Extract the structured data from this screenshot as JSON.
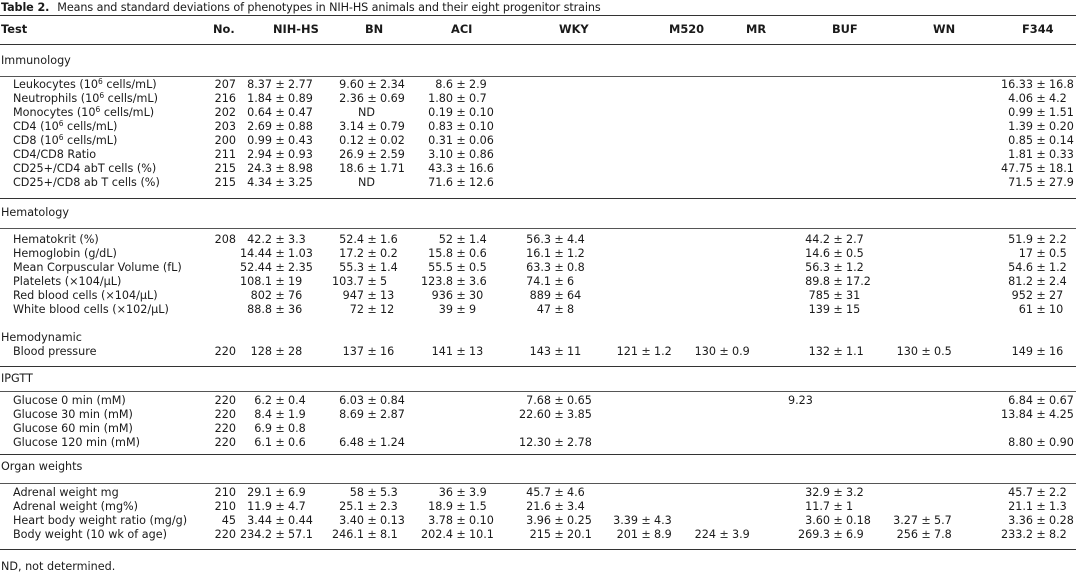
{
  "table": {
    "label": "Table 2.",
    "caption": "Means and standard deviations of phenotypes in NIH-HS animals and their eight progenitor strains",
    "columns": [
      "Test",
      "No.",
      "NIH-HS",
      "BN",
      "ACI",
      "WKY",
      "M520",
      "MR",
      "BUF",
      "WN",
      "F344"
    ],
    "sections": [
      {
        "name": "Immunology",
        "rows": [
          {
            "test": "Leukocytes (10^6 cells/mL)",
            "no": "207",
            "values": {
              "NIH-HS": "8.37 ± 2.77",
              "BN": "9.60 ± 2.34",
              "ACI": "8.6 ± 2.9",
              "WKY": "",
              "M520": "",
              "MR": "",
              "BUF": "",
              "WN": "",
              "F344": "16.33 ± 16.8"
            }
          },
          {
            "test": "Neutrophils (10^6 cells/mL)",
            "no": "216",
            "values": {
              "NIH-HS": "1.84 ± 0.89",
              "BN": "2.36 ± 0.69",
              "ACI": "1.80 ± 0.7",
              "WKY": "",
              "M520": "",
              "MR": "",
              "BUF": "",
              "WN": "",
              "F344": "4.06 ± 4.2"
            }
          },
          {
            "test": "Monocytes (10^6 cells/mL)",
            "no": "202",
            "values": {
              "NIH-HS": "0.64 ± 0.47",
              "BN": "ND",
              "ACI": "0.19 ± 0.10",
              "WKY": "",
              "M520": "",
              "MR": "",
              "BUF": "",
              "WN": "",
              "F344": "0.99 ± 1.51"
            }
          },
          {
            "test": "CD4 (10^6 cells/mL)",
            "no": "203",
            "values": {
              "NIH-HS": "2.69 ± 0.88",
              "BN": "3.14 ± 0.79",
              "ACI": "0.83 ± 0.10",
              "WKY": "",
              "M520": "",
              "MR": "",
              "BUF": "",
              "WN": "",
              "F344": "1.39 ± 0.20"
            }
          },
          {
            "test": "CD8 (10^6 cells/mL)",
            "no": "200",
            "values": {
              "NIH-HS": "0.99 ± 0.43",
              "BN": "0.12 ± 0.02",
              "ACI": "0.31 ± 0.06",
              "WKY": "",
              "M520": "",
              "MR": "",
              "BUF": "",
              "WN": "",
              "F344": "0.85 ± 0.14"
            }
          },
          {
            "test": "CD4/CD8 Ratio",
            "no": "211",
            "values": {
              "NIH-HS": "2.94 ± 0.93",
              "BN": "26.9 ± 2.59",
              "ACI": "3.10 ± 0.86",
              "WKY": "",
              "M520": "",
              "MR": "",
              "BUF": "",
              "WN": "",
              "F344": "1.81 ± 0.33"
            }
          },
          {
            "test": "CD25+/CD4 abT cells (%)",
            "no": "215",
            "values": {
              "NIH-HS": "24.3 ± 8.98",
              "BN": "18.6 ± 1.71",
              "ACI": "43.3 ± 16.6",
              "WKY": "",
              "M520": "",
              "MR": "",
              "BUF": "",
              "WN": "",
              "F344": "47.75 ± 18.1"
            }
          },
          {
            "test": "CD25+/CD8 ab T cells (%)",
            "no": "215",
            "values": {
              "NIH-HS": "4.34 ± 3.25",
              "BN": "ND",
              "ACI": "71.6 ± 12.6",
              "WKY": "",
              "M520": "",
              "MR": "",
              "BUF": "",
              "WN": "",
              "F344": "71.5 ± 27.9"
            }
          }
        ]
      },
      {
        "name": "Hematology",
        "rows": [
          {
            "test": "Hematokrit (%)",
            "no": "208",
            "values": {
              "NIH-HS": "42.2 ± 3.3",
              "BN": "52.4 ± 1.6",
              "ACI": "52 ± 1.4",
              "WKY": "56.3 ± 4.4",
              "M520": "",
              "MR": "",
              "BUF": "44.2 ± 2.7",
              "WN": "",
              "F344": "51.9 ± 2.2"
            }
          },
          {
            "test": "Hemoglobin (g/dL)",
            "no": "",
            "values": {
              "NIH-HS": "14.44 ± 1.03",
              "BN": "17.2 ± 0.2",
              "ACI": "15.8 ± 0.6",
              "WKY": "16.1 ± 1.2",
              "M520": "",
              "MR": "",
              "BUF": "14.6 ± 0.5",
              "WN": "",
              "F344": "17 ± 0.5"
            }
          },
          {
            "test": "Mean Corpuscular Volume (fL)",
            "no": "",
            "values": {
              "NIH-HS": "52.44 ± 2.35",
              "BN": "55.3 ± 1.4",
              "ACI": "55.5 ± 0.5",
              "WKY": "63.3 ± 0.8",
              "M520": "",
              "MR": "",
              "BUF": "56.3 ± 1.2",
              "WN": "",
              "F344": "54.6 ± 1.2"
            }
          },
          {
            "test": "Platelets (×104/μL)",
            "no": "",
            "values": {
              "NIH-HS": "108.1 ± 19",
              "BN": "103.7 ± 5",
              "ACI": "123.8 ± 3.6",
              "WKY": "74.1 ± 6",
              "M520": "",
              "MR": "",
              "BUF": "89.8 ± 17.2",
              "WN": "",
              "F344": "81.2 ± 2.4"
            }
          },
          {
            "test": "Red blood cells (×104/μL)",
            "no": "",
            "values": {
              "NIH-HS": "802 ± 76",
              "BN": "947 ± 13",
              "ACI": "936 ± 30",
              "WKY": "889 ± 64",
              "M520": "",
              "MR": "",
              "BUF": "785 ± 31",
              "WN": "",
              "F344": "952 ± 27"
            }
          },
          {
            "test": "White blood cells (×102/μL)",
            "no": "",
            "values": {
              "NIH-HS": "88.8 ± 36",
              "BN": "72 ± 12",
              "ACI": "39 ± 9",
              "WKY": "47 ± 8",
              "M520": "",
              "MR": "",
              "BUF": "139 ± 15",
              "WN": "",
              "F344": "61 ± 10"
            }
          }
        ]
      },
      {
        "name": "Hemodynamic",
        "rows": [
          {
            "test": "Blood pressure",
            "no": "220",
            "values": {
              "NIH-HS": "128 ± 28",
              "BN": "137 ± 16",
              "ACI": "141 ± 13",
              "WKY": "143 ± 11",
              "M520": "121 ± 1.2",
              "MR": "130 ± 0.9",
              "BUF": "132 ± 1.1",
              "WN": "130 ± 0.5",
              "F344": "149 ± 16"
            }
          }
        ]
      },
      {
        "name": "IPGTT",
        "rows": [
          {
            "test": "Glucose 0 min (mM)",
            "no": "220",
            "values": {
              "NIH-HS": "6.2 ± 0.4",
              "BN": "6.03 ± 0.84",
              "ACI": "",
              "WKY": "7.68 ± 0.65",
              "M520": "",
              "MR": "",
              "BUF": "9.23",
              "WN": "",
              "F344": "6.84 ± 0.67"
            }
          },
          {
            "test": "Glucose 30 min (mM)",
            "no": "220",
            "values": {
              "NIH-HS": "8.4 ± 1.9",
              "BN": "8.69 ± 2.87",
              "ACI": "",
              "WKY": "22.60 ± 3.85",
              "M520": "",
              "MR": "",
              "BUF": "",
              "WN": "",
              "F344": "13.84 ± 4.25"
            }
          },
          {
            "test": "Glucose 60 min (mM)",
            "no": "220",
            "values": {
              "NIH-HS": "6.9 ± 0.8",
              "BN": "",
              "ACI": "",
              "WKY": "",
              "M520": "",
              "MR": "",
              "BUF": "",
              "WN": "",
              "F344": ""
            }
          },
          {
            "test": "Glucose 120 min (mM)",
            "no": "220",
            "values": {
              "NIH-HS": "6.1 ± 0.6",
              "BN": "6.48 ± 1.24",
              "ACI": "",
              "WKY": "12.30 ± 2.78",
              "M520": "",
              "MR": "",
              "BUF": "",
              "WN": "",
              "F344": "8.80 ± 0.90"
            }
          }
        ]
      },
      {
        "name": "Organ weights",
        "rows": [
          {
            "test": "Adrenal weight mg",
            "no": "210",
            "values": {
              "NIH-HS": "29.1 ± 6.9",
              "BN": "58 ± 5.3",
              "ACI": "36 ± 3.9",
              "WKY": "45.7 ± 4.6",
              "M520": "",
              "MR": "",
              "BUF": "32.9 ± 3.2",
              "WN": "",
              "F344": "45.7 ± 2.2"
            }
          },
          {
            "test": "Adrenal weight (mg%)",
            "no": "210",
            "values": {
              "NIH-HS": "11.9 ± 4.7",
              "BN": "25.1 ± 2.3",
              "ACI": "18.9 ± 1.5",
              "WKY": "21.6 ± 3.4",
              "M520": "",
              "MR": "",
              "BUF": "11.7 ± 1",
              "WN": "",
              "F344": "21.1 ± 1.3"
            }
          },
          {
            "test": "Heart body weight ratio (mg/g)",
            "no": "45",
            "values": {
              "NIH-HS": "3.44 ± 0.44",
              "BN": "3.40 ± 0.13",
              "ACI": "3.78 ± 0.10",
              "WKY": "3.96 ± 0.25",
              "M520": "3.39 ± 4.3",
              "MR": "",
              "BUF": "3.60 ± 0.18",
              "WN": "3.27 ± 5.7",
              "F344": "3.36 ± 0.28"
            }
          },
          {
            "test": "Body weight (10 wk of age)",
            "no": "220",
            "values": {
              "NIH-HS": "234.2 ± 57.1",
              "BN": "246.1 ± 8.1",
              "ACI": "202.4 ± 10.1",
              "WKY": "215 ± 20.1",
              "M520": "201 ± 8.9",
              "MR": "224 ± 3.9",
              "BUF": "269.3 ± 6.9",
              "WN": "256 ± 7.8",
              "F344": "233.2 ± 8.2"
            }
          }
        ]
      }
    ],
    "footnote": "ND, not determined."
  }
}
